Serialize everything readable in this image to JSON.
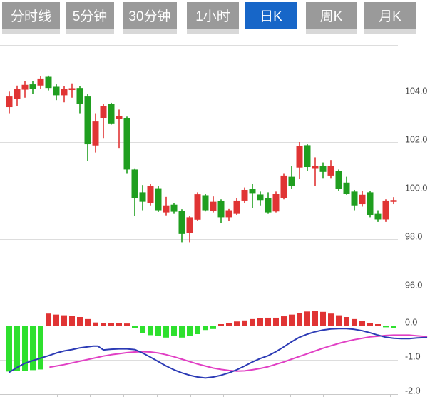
{
  "app": {
    "tabs": [
      {
        "label": "分时线",
        "active": false
      },
      {
        "label": "5分钟",
        "active": false
      },
      {
        "label": "30分钟",
        "active": false
      },
      {
        "label": "1小时",
        "active": false
      },
      {
        "label": "日K",
        "active": true
      },
      {
        "label": "周K",
        "active": false
      },
      {
        "label": "月K",
        "active": false
      }
    ],
    "colors": {
      "tab_bg": "#9a9a9a",
      "tab_active_bg": "#1766c8",
      "tab_text": "#ffffff",
      "candle_up": "#e03434",
      "candle_down": "#1f9e1f",
      "macd_pos": "#e03434",
      "macd_neg": "#2ee02e",
      "dif_line": "#2b3ab5",
      "dea_line": "#e13fc4",
      "grid": "#dddddd",
      "zero_line": "#e7e7e7",
      "bottom_axis": "#c9c9c9",
      "axis_text": "#454545"
    }
  },
  "chart_data": {
    "type": "candlestick-with-macd",
    "price_axis": {
      "range": [
        95.6,
        106.0
      ],
      "gridlines": [
        {
          "value": 106,
          "label": ""
        },
        {
          "value": 104,
          "label": "104.0"
        },
        {
          "value": 102,
          "label": "102.0"
        },
        {
          "value": 100,
          "label": "100.0"
        },
        {
          "value": 98,
          "label": "98.0"
        },
        {
          "value": 96,
          "label": "96.0"
        }
      ]
    },
    "macd_axis": {
      "range": [
        -2.1,
        0.5
      ],
      "gridlines": [
        {
          "value": 0,
          "label": "0.0"
        },
        {
          "value": -1,
          "label": "-1.0"
        },
        {
          "value": -2,
          "label": "-2.0"
        }
      ]
    },
    "candle_columns": [
      "open",
      "close",
      "high",
      "low"
    ],
    "candles": [
      [
        103.44,
        103.88,
        104.08,
        103.19
      ],
      [
        103.78,
        104.18,
        104.33,
        103.49
      ],
      [
        104.16,
        104.36,
        104.52,
        103.83
      ],
      [
        104.38,
        104.18,
        104.52,
        104.0
      ],
      [
        104.33,
        104.62,
        104.72,
        104.18
      ],
      [
        104.69,
        104.23,
        104.74,
        104.13
      ],
      [
        104.28,
        103.93,
        104.38,
        103.73
      ],
      [
        103.93,
        104.18,
        104.3,
        103.64
      ],
      [
        104.16,
        104.22,
        104.42,
        103.83
      ],
      [
        104.23,
        103.58,
        104.3,
        103.19
      ],
      [
        103.88,
        101.91,
        103.98,
        101.22
      ],
      [
        101.86,
        102.85,
        103.19,
        101.57
      ],
      [
        103.0,
        103.5,
        103.56,
        102.17
      ],
      [
        103.58,
        102.77,
        103.62,
        102.72
      ],
      [
        102.96,
        103.08,
        103.34,
        101.76
      ],
      [
        103.0,
        100.87,
        103.05,
        100.72
      ],
      [
        100.87,
        99.7,
        100.92,
        98.95
      ],
      [
        99.93,
        99.54,
        100.23,
        99.19
      ],
      [
        99.49,
        100.18,
        100.28,
        99.39
      ],
      [
        100.1,
        99.19,
        100.18,
        99.12
      ],
      [
        99.1,
        99.39,
        99.74,
        98.98
      ],
      [
        99.42,
        99.13,
        99.49,
        99.04
      ],
      [
        99.17,
        98.21,
        99.23,
        97.87
      ],
      [
        98.25,
        98.9,
        98.97,
        97.87
      ],
      [
        98.8,
        99.85,
        99.93,
        98.76
      ],
      [
        99.81,
        99.19,
        99.88,
        99.14
      ],
      [
        99.17,
        99.54,
        99.76,
        99.1
      ],
      [
        99.56,
        98.9,
        99.64,
        98.66
      ],
      [
        98.9,
        99.19,
        99.24,
        98.76
      ],
      [
        99.04,
        99.59,
        99.68,
        99.0
      ],
      [
        99.59,
        100.03,
        100.13,
        99.49
      ],
      [
        100.08,
        99.9,
        100.28,
        99.29
      ],
      [
        99.84,
        99.61,
        99.96,
        99.39
      ],
      [
        99.68,
        99.1,
        99.93,
        99.04
      ],
      [
        99.14,
        99.88,
        99.96,
        99.1
      ],
      [
        99.68,
        100.62,
        100.72,
        99.64
      ],
      [
        100.57,
        100.18,
        101.01,
        100.08
      ],
      [
        100.95,
        101.83,
        102.0,
        100.47
      ],
      [
        101.87,
        100.97,
        101.91,
        100.82
      ],
      [
        100.94,
        101.0,
        101.37,
        100.18
      ],
      [
        101.01,
        100.77,
        101.16,
        100.52
      ],
      [
        100.62,
        101.01,
        101.26,
        100.52
      ],
      [
        100.82,
        100.08,
        100.87,
        99.99
      ],
      [
        100.33,
        99.88,
        100.57,
        99.83
      ],
      [
        99.96,
        99.39,
        100.03,
        99.19
      ],
      [
        99.44,
        99.83,
        99.99,
        99.34
      ],
      [
        99.93,
        99.0,
        99.99,
        98.9
      ],
      [
        99.04,
        98.81,
        99.19,
        98.71
      ],
      [
        98.81,
        99.59,
        99.64,
        98.71
      ],
      [
        99.57,
        99.61,
        99.73,
        99.44
      ]
    ],
    "macd": {
      "histogram": [
        -1.34,
        -1.32,
        -1.33,
        -1.3,
        -1.28,
        0.35,
        0.32,
        0.3,
        0.28,
        0.25,
        0.19,
        0.09,
        0.08,
        0.08,
        0.08,
        0.06,
        -0.07,
        -0.22,
        -0.28,
        -0.31,
        -0.35,
        -0.31,
        -0.35,
        -0.31,
        -0.25,
        -0.13,
        -0.1,
        0.03,
        0.08,
        0.12,
        0.15,
        0.19,
        0.21,
        0.23,
        0.23,
        0.27,
        0.32,
        0.37,
        0.41,
        0.43,
        0.4,
        0.35,
        0.3,
        0.25,
        0.19,
        0.13,
        0.07,
        0.04,
        -0.05,
        -0.07
      ],
      "dif": [
        [
          0,
          -1.36
        ],
        [
          1,
          -1.22
        ],
        [
          2,
          -1.1
        ],
        [
          3,
          -1.02
        ],
        [
          4,
          -0.95
        ],
        [
          5,
          -0.88
        ],
        [
          6,
          -0.8
        ],
        [
          7,
          -0.74
        ],
        [
          8,
          -0.7
        ],
        [
          9,
          -0.65
        ],
        [
          10,
          -0.62
        ],
        [
          10.7,
          -0.6
        ],
        [
          11.3,
          -0.6
        ],
        [
          12,
          -0.71
        ],
        [
          13,
          -0.69
        ],
        [
          14,
          -0.68
        ],
        [
          15,
          -0.68
        ],
        [
          16,
          -0.7
        ],
        [
          17,
          -0.8
        ],
        [
          18,
          -0.92
        ],
        [
          19,
          -1.05
        ],
        [
          20,
          -1.18
        ],
        [
          21,
          -1.29
        ],
        [
          22,
          -1.38
        ],
        [
          23,
          -1.45
        ],
        [
          24,
          -1.5
        ],
        [
          25,
          -1.53
        ],
        [
          26,
          -1.5
        ],
        [
          27,
          -1.45
        ],
        [
          28,
          -1.38
        ],
        [
          29,
          -1.29
        ],
        [
          30,
          -1.18
        ],
        [
          31,
          -1.06
        ],
        [
          32,
          -0.96
        ],
        [
          33,
          -0.88
        ],
        [
          34,
          -0.76
        ],
        [
          35,
          -0.62
        ],
        [
          36,
          -0.47
        ],
        [
          37,
          -0.34
        ],
        [
          38,
          -0.25
        ],
        [
          39,
          -0.18
        ],
        [
          40,
          -0.13
        ],
        [
          41,
          -0.1
        ],
        [
          42,
          -0.09
        ],
        [
          43,
          -0.09
        ],
        [
          44,
          -0.11
        ],
        [
          45,
          -0.15
        ],
        [
          46,
          -0.21
        ],
        [
          47,
          -0.28
        ],
        [
          48,
          -0.34
        ],
        [
          49,
          -0.37
        ],
        [
          50,
          -0.38
        ],
        [
          51,
          -0.38
        ],
        [
          52,
          -0.36
        ],
        [
          53.2,
          -0.35
        ]
      ],
      "dea": [
        [
          5.2,
          -1.21
        ],
        [
          6,
          -1.18
        ],
        [
          7,
          -1.14
        ],
        [
          8,
          -1.09
        ],
        [
          9,
          -1.04
        ],
        [
          10,
          -0.99
        ],
        [
          11,
          -0.94
        ],
        [
          12,
          -0.89
        ],
        [
          13,
          -0.85
        ],
        [
          14,
          -0.82
        ],
        [
          15,
          -0.79
        ],
        [
          16,
          -0.77
        ],
        [
          17,
          -0.76
        ],
        [
          18,
          -0.77
        ],
        [
          19,
          -0.8
        ],
        [
          20,
          -0.85
        ],
        [
          21,
          -0.91
        ],
        [
          22,
          -0.98
        ],
        [
          23,
          -1.05
        ],
        [
          24,
          -1.12
        ],
        [
          25,
          -1.18
        ],
        [
          26,
          -1.24
        ],
        [
          27,
          -1.28
        ],
        [
          28,
          -1.31
        ],
        [
          29,
          -1.33
        ],
        [
          30,
          -1.32
        ],
        [
          31,
          -1.29
        ],
        [
          32,
          -1.25
        ],
        [
          33,
          -1.2
        ],
        [
          34,
          -1.13
        ],
        [
          35,
          -1.06
        ],
        [
          36,
          -0.98
        ],
        [
          37,
          -0.9
        ],
        [
          38,
          -0.82
        ],
        [
          39,
          -0.74
        ],
        [
          40,
          -0.66
        ],
        [
          41,
          -0.59
        ],
        [
          42,
          -0.52
        ],
        [
          43,
          -0.46
        ],
        [
          44,
          -0.41
        ],
        [
          45,
          -0.37
        ],
        [
          46,
          -0.33
        ],
        [
          47,
          -0.31
        ],
        [
          48,
          -0.29
        ],
        [
          49,
          -0.28
        ],
        [
          50,
          -0.28
        ],
        [
          51,
          -0.28
        ],
        [
          52,
          -0.3
        ],
        [
          53.2,
          -0.32
        ]
      ]
    }
  }
}
